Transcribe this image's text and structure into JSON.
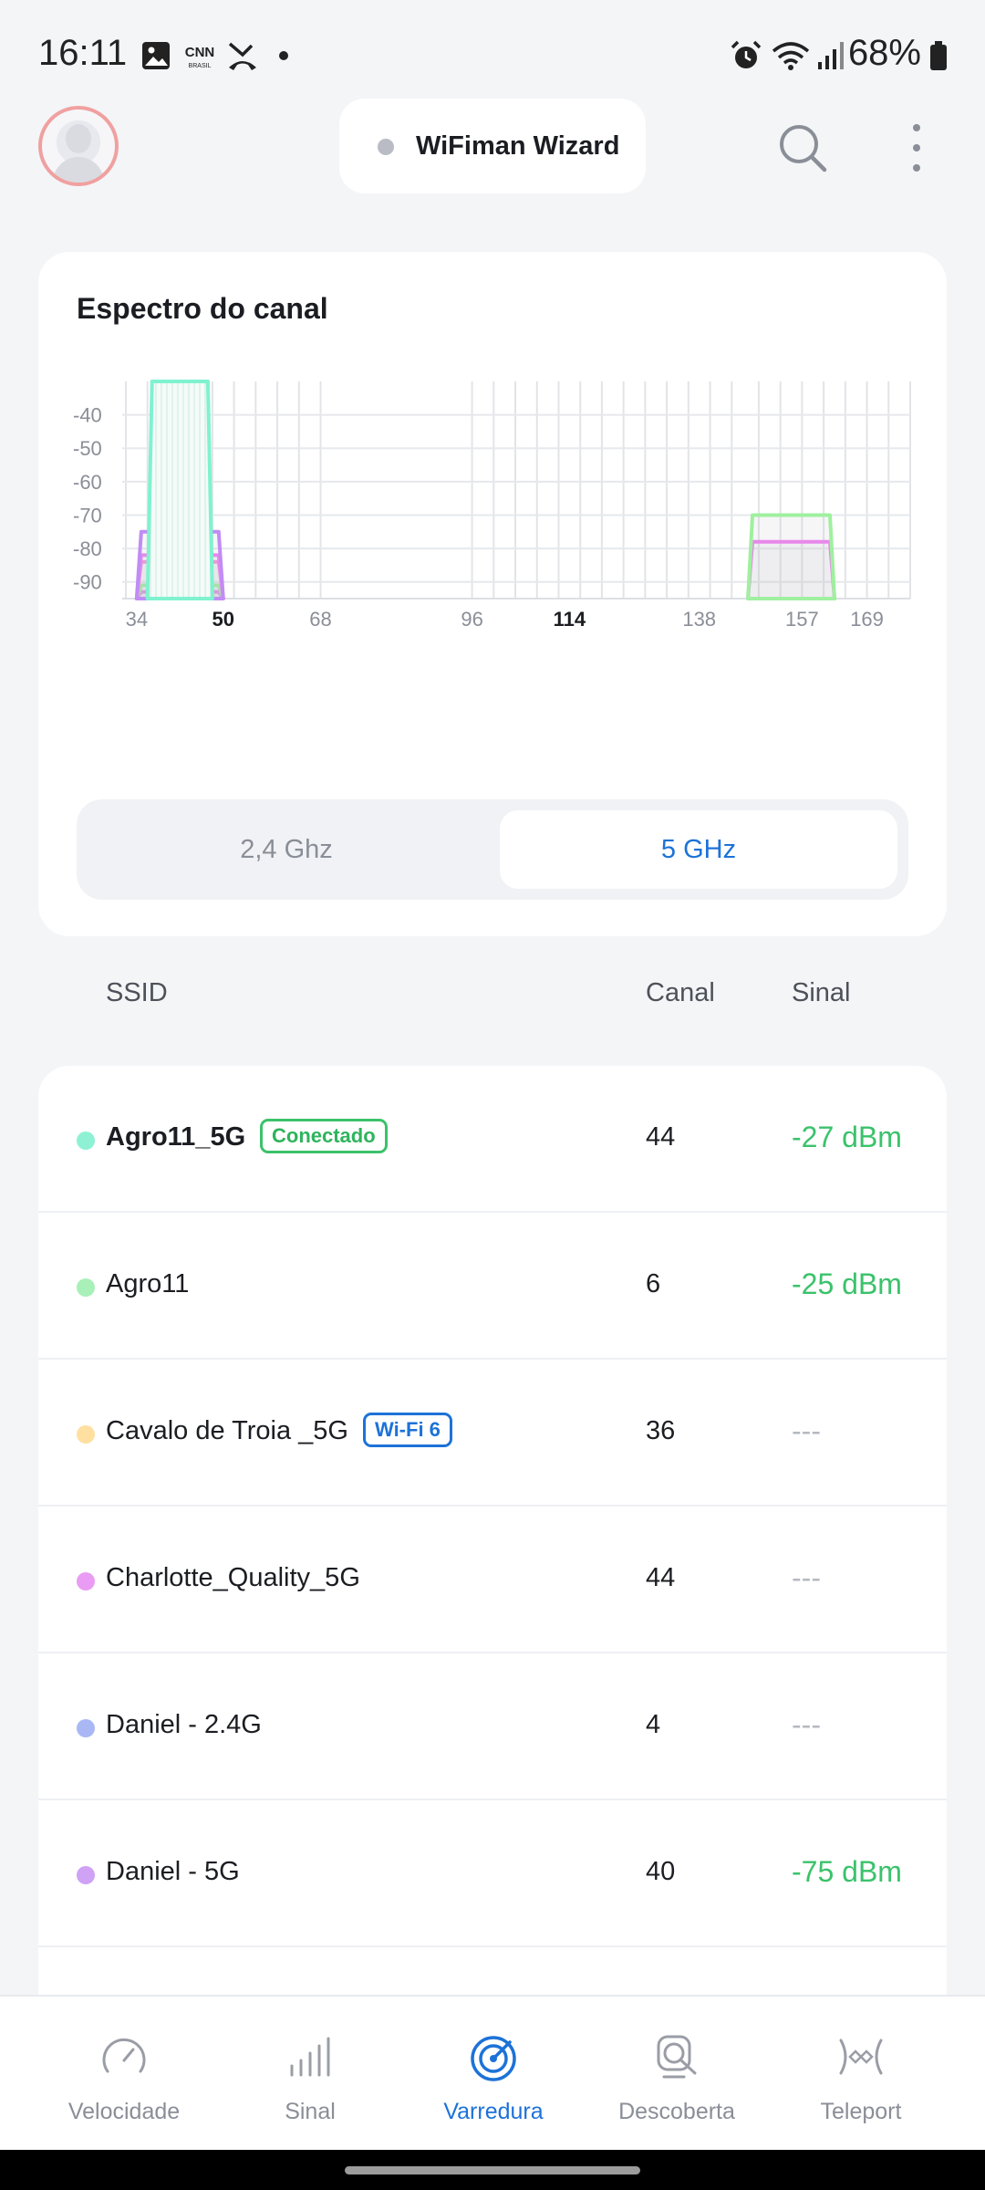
{
  "status_bar": {
    "time": "16:11",
    "battery": "68%",
    "icons": [
      "gallery-icon",
      "cnn-brasil-icon",
      "missed-call-icon",
      "notification-dot-icon",
      "alarm-icon",
      "wifi-icon",
      "cell-signal-icon",
      "battery-icon"
    ]
  },
  "header": {
    "wizard_label": "WiFiman Wizard",
    "icons": [
      "avatar",
      "search-icon",
      "more-vert-icon"
    ]
  },
  "spectrum": {
    "title": "Espectro do canal",
    "band_options": [
      {
        "label": "2,4 Ghz",
        "selected": false
      },
      {
        "label": "5 GHz",
        "selected": true
      }
    ]
  },
  "chart_data": {
    "type": "area",
    "title": "Espectro do canal",
    "xlabel": "",
    "ylabel": "",
    "x_ticks": [
      "34",
      "50",
      "68",
      "96",
      "114",
      "138",
      "157",
      "169"
    ],
    "x_ticks_bold": [
      "50",
      "114"
    ],
    "y_ticks": [
      "-40",
      "-50",
      "-60",
      "-70",
      "-80",
      "-90"
    ],
    "xlim": [
      32,
      177
    ],
    "ylim": [
      -95,
      -30
    ],
    "grid": true,
    "series": [
      {
        "name": "Agro11_5G",
        "color": "#7ff2cf",
        "x_start": 36,
        "x_end": 48,
        "level": -27
      },
      {
        "name": "Cavalo de Troia _5G",
        "color": "#ffd691",
        "x_start": 34,
        "x_end": 50,
        "level": -95
      },
      {
        "name": "Charlotte_Quality_5G",
        "color": "#f07ff0",
        "x_start": 34,
        "x_end": 50,
        "level": -82
      },
      {
        "name": "Daniel - 5G",
        "color": "#c08cf5",
        "x_start": 34,
        "x_end": 50,
        "level": -75
      },
      {
        "color": "#f48fe2",
        "x_start": 34,
        "x_end": 50,
        "level": -84
      },
      {
        "color": "#9ff09f",
        "x_start": 34,
        "x_end": 50,
        "level": -91
      },
      {
        "color": "#f07ff0",
        "x_start": 34,
        "x_end": 50,
        "level": -93
      },
      {
        "color": "#9ff09f",
        "x_start": 147,
        "x_end": 163,
        "level": -70
      },
      {
        "color": "#f07ff0",
        "x_start": 147,
        "x_end": 163,
        "level": -78
      }
    ]
  },
  "table": {
    "columns": [
      "SSID",
      "Canal",
      "Sinal"
    ],
    "rows": [
      {
        "ssid": "Agro11_5G",
        "bold": true,
        "color": "#8ff1d4",
        "badge": "Conectado",
        "badge_style": "green",
        "channel": "44",
        "signal": "-27 dBm",
        "has_signal": true
      },
      {
        "ssid": "Agro11",
        "bold": false,
        "color": "#a8f0b8",
        "badge": "",
        "badge_style": "",
        "channel": "6",
        "signal": "-25 dBm",
        "has_signal": true
      },
      {
        "ssid": "Cavalo de Troia _5G",
        "bold": false,
        "color": "#ffe0a0",
        "badge": "Wi-Fi 6",
        "badge_style": "blue",
        "channel": "36",
        "signal": "---",
        "has_signal": false
      },
      {
        "ssid": "Charlotte_Quality_5G",
        "bold": false,
        "color": "#ea9cf4",
        "badge": "",
        "badge_style": "",
        "channel": "44",
        "signal": "---",
        "has_signal": false
      },
      {
        "ssid": "Daniel - 2.4G",
        "bold": false,
        "color": "#a9b8f5",
        "badge": "",
        "badge_style": "",
        "channel": "4",
        "signal": "---",
        "has_signal": false
      },
      {
        "ssid": "Daniel - 5G",
        "bold": false,
        "color": "#cfa2f5",
        "badge": "",
        "badge_style": "",
        "channel": "40",
        "signal": "-75 dBm",
        "has_signal": true
      }
    ]
  },
  "bottom_nav": {
    "items": [
      {
        "label": "Velocidade",
        "icon": "speedometer-icon",
        "active": false
      },
      {
        "label": "Sinal",
        "icon": "signal-bars-icon",
        "active": false
      },
      {
        "label": "Varredura",
        "icon": "radar-icon",
        "active": true
      },
      {
        "label": "Descoberta",
        "icon": "device-search-icon",
        "active": false
      },
      {
        "label": "Teleport",
        "icon": "teleport-icon",
        "active": false
      }
    ]
  },
  "colors": {
    "accent": "#1d72d8",
    "signal_good": "#3bc26b",
    "muted": "#8a8e97"
  }
}
